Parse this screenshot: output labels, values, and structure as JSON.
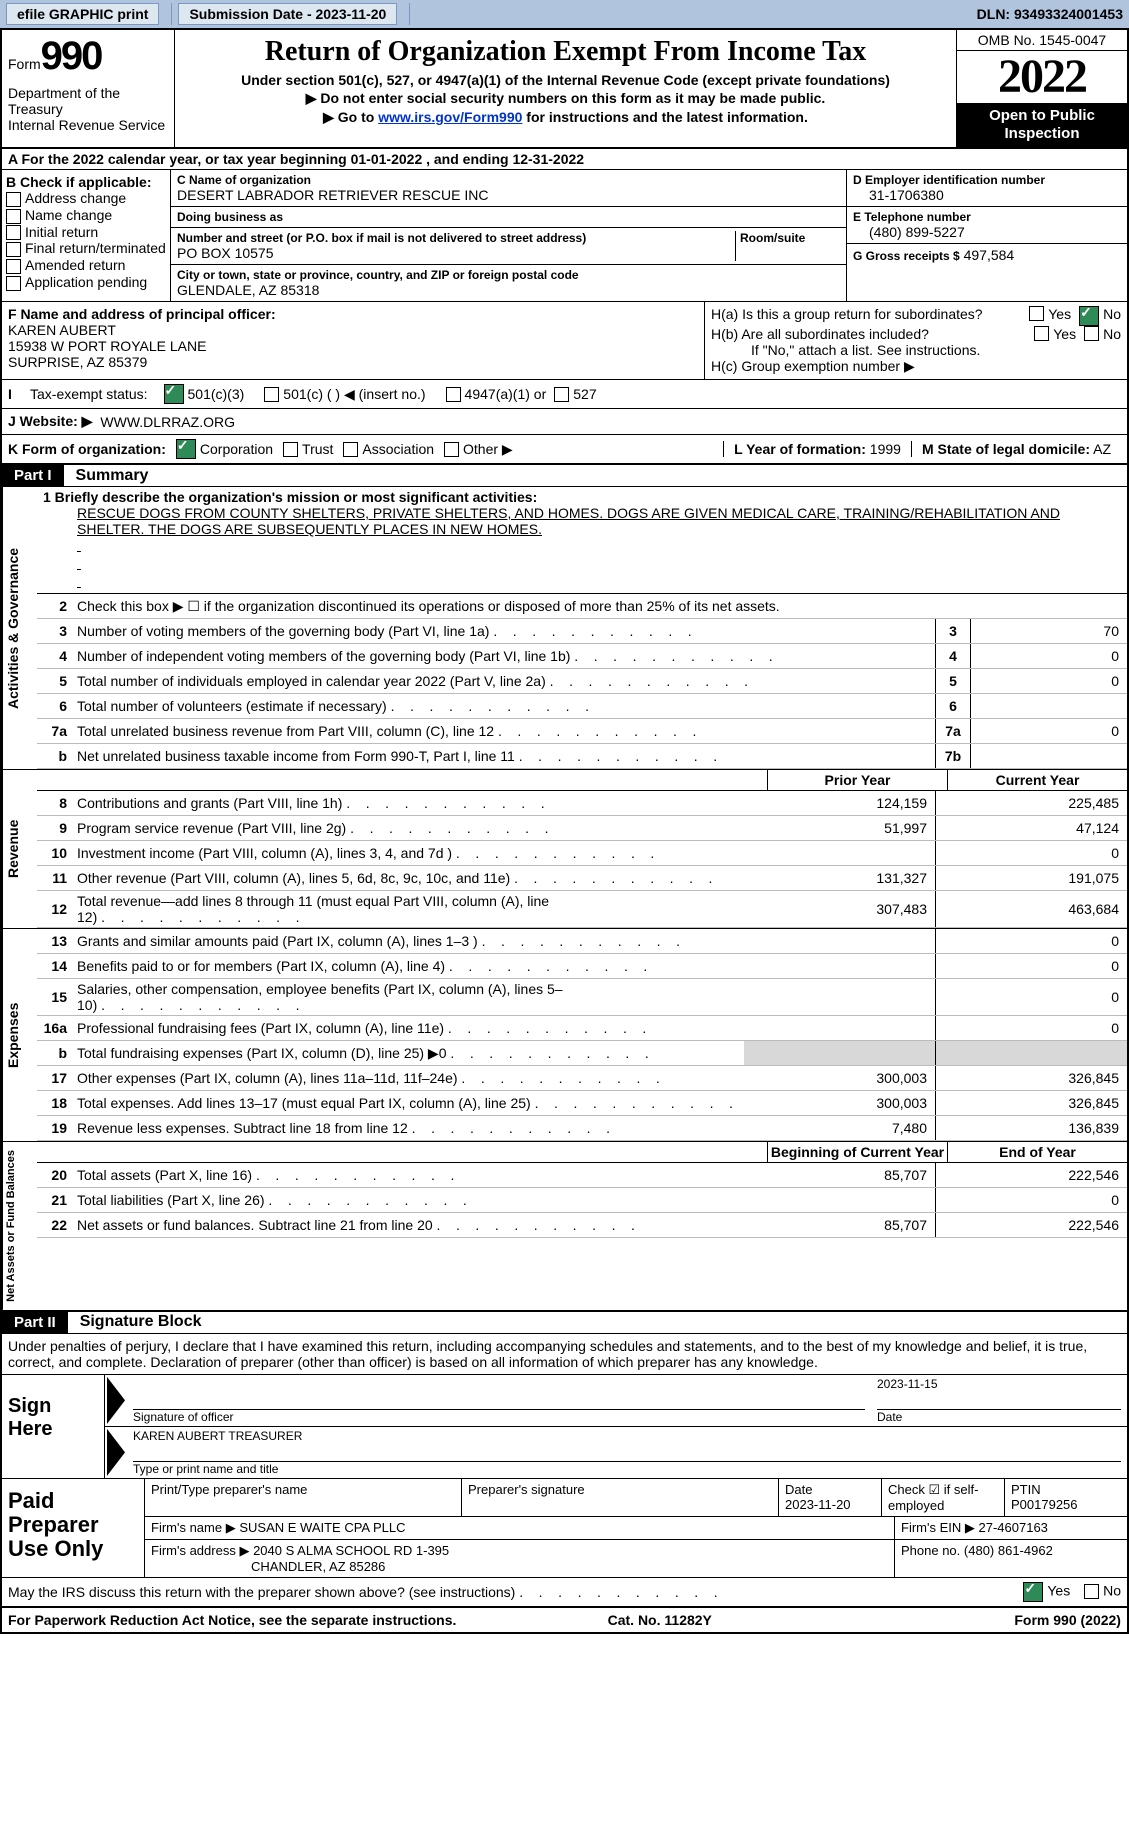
{
  "topbar": {
    "efile_label": "efile GRAPHIC print",
    "submission_label": "Submission Date - 2023-11-20",
    "dln_label": "DLN: 93493324001453"
  },
  "header": {
    "form_word": "Form",
    "form_num": "990",
    "dept": "Department of the Treasury",
    "irs": "Internal Revenue Service",
    "title": "Return of Organization Exempt From Income Tax",
    "sub1": "Under section 501(c), 527, or 4947(a)(1) of the Internal Revenue Code (except private foundations)",
    "sub2": "▶ Do not enter social security numbers on this form as it may be made public.",
    "sub3_pre": "▶ Go to ",
    "sub3_link": "www.irs.gov/Form990",
    "sub3_post": " for instructions and the latest information.",
    "omb": "OMB No. 1545-0047",
    "year": "2022",
    "inspect": "Open to Public Inspection"
  },
  "rowA": "A For the 2022 calendar year, or tax year beginning 01-01-2022    , and ending 12-31-2022",
  "boxB": {
    "label": "B Check if applicable:",
    "opts": [
      "Address change",
      "Name change",
      "Initial return",
      "Final return/terminated",
      "Amended return",
      "Application pending"
    ]
  },
  "boxC": {
    "label": "C Name of organization",
    "name": "DESERT LABRADOR RETRIEVER RESCUE INC",
    "dba_label": "Doing business as",
    "dba": "",
    "addr_label": "Number and street (or P.O. box if mail is not delivered to street address)",
    "room_label": "Room/suite",
    "addr": "PO BOX 10575",
    "city_label": "City or town, state or province, country, and ZIP or foreign postal code",
    "city": "GLENDALE, AZ  85318"
  },
  "boxD": {
    "label": "D Employer identification number",
    "value": "31-1706380",
    "phone_label": "E Telephone number",
    "phone": "(480) 899-5227",
    "gross_label": "G Gross receipts $",
    "gross": "497,584"
  },
  "boxF": {
    "label": "F  Name and address of principal officer:",
    "name": "KAREN AUBERT",
    "addr": "15938 W PORT ROYALE LANE",
    "city": "SURPRISE, AZ  85379"
  },
  "boxH": {
    "ha_label": "H(a)  Is this a group return for subordinates?",
    "hb_label": "H(b)  Are all subordinates included?",
    "hb_note": "If \"No,\" attach a list. See instructions.",
    "hc_label": "H(c)  Group exemption number ▶",
    "yes": "Yes",
    "no": "No"
  },
  "rowI": {
    "label": "Tax-exempt status:",
    "opts": [
      "501(c)(3)",
      "501(c) (  ) ◀ (insert no.)",
      "4947(a)(1) or",
      "527"
    ]
  },
  "rowJ": {
    "label": "J   Website: ▶",
    "value": "WWW.DLRRAZ.ORG"
  },
  "rowK": {
    "label": "K Form of organization:",
    "opts": [
      "Corporation",
      "Trust",
      "Association",
      "Other ▶"
    ],
    "L_label": "L Year of formation:",
    "L_val": "1999",
    "M_label": "M State of legal domicile:",
    "M_val": "AZ"
  },
  "part1": {
    "tag": "Part I",
    "title": "Summary"
  },
  "q1": {
    "label": "1   Briefly describe the organization's mission or most significant activities:",
    "text": "RESCUE DOGS FROM COUNTY SHELTERS, PRIVATE SHELTERS, AND HOMES. DOGS ARE GIVEN MEDICAL CARE, TRAINING/REHABILITATION AND SHELTER. THE DOGS ARE SUBSEQUENTLY PLACES IN NEW HOMES."
  },
  "q2": "Check this box ▶ ☐  if the organization discontinued its operations or disposed of more than 25% of its net assets.",
  "lines_gov": [
    {
      "n": "3",
      "t": "Number of voting members of the governing body (Part VI, line 1a)",
      "box": "3",
      "v": "70"
    },
    {
      "n": "4",
      "t": "Number of independent voting members of the governing body (Part VI, line 1b)",
      "box": "4",
      "v": "0"
    },
    {
      "n": "5",
      "t": "Total number of individuals employed in calendar year 2022 (Part V, line 2a)",
      "box": "5",
      "v": "0"
    },
    {
      "n": "6",
      "t": "Total number of volunteers (estimate if necessary)",
      "box": "6",
      "v": ""
    },
    {
      "n": "7a",
      "t": "Total unrelated business revenue from Part VIII, column (C), line 12",
      "box": "7a",
      "v": "0"
    },
    {
      "n": "b",
      "t": "Net unrelated business taxable income from Form 990-T, Part I, line 11",
      "box": "7b",
      "v": ""
    }
  ],
  "col_headers": {
    "prior": "Prior Year",
    "current": "Current Year"
  },
  "lines_rev": [
    {
      "n": "8",
      "t": "Contributions and grants (Part VIII, line 1h)",
      "p": "124,159",
      "c": "225,485"
    },
    {
      "n": "9",
      "t": "Program service revenue (Part VIII, line 2g)",
      "p": "51,997",
      "c": "47,124"
    },
    {
      "n": "10",
      "t": "Investment income (Part VIII, column (A), lines 3, 4, and 7d )",
      "p": "",
      "c": "0"
    },
    {
      "n": "11",
      "t": "Other revenue (Part VIII, column (A), lines 5, 6d, 8c, 9c, 10c, and 11e)",
      "p": "131,327",
      "c": "191,075"
    },
    {
      "n": "12",
      "t": "Total revenue—add lines 8 through 11 (must equal Part VIII, column (A), line 12)",
      "p": "307,483",
      "c": "463,684"
    }
  ],
  "lines_exp": [
    {
      "n": "13",
      "t": "Grants and similar amounts paid (Part IX, column (A), lines 1–3 )",
      "p": "",
      "c": "0"
    },
    {
      "n": "14",
      "t": "Benefits paid to or for members (Part IX, column (A), line 4)",
      "p": "",
      "c": "0"
    },
    {
      "n": "15",
      "t": "Salaries, other compensation, employee benefits (Part IX, column (A), lines 5–10)",
      "p": "",
      "c": "0"
    },
    {
      "n": "16a",
      "t": "Professional fundraising fees (Part IX, column (A), line 11e)",
      "p": "",
      "c": "0"
    },
    {
      "n": "b",
      "t": "Total fundraising expenses (Part IX, column (D), line 25) ▶0",
      "p": "SHADE",
      "c": "SHADE"
    },
    {
      "n": "17",
      "t": "Other expenses (Part IX, column (A), lines 11a–11d, 11f–24e)",
      "p": "300,003",
      "c": "326,845"
    },
    {
      "n": "18",
      "t": "Total expenses. Add lines 13–17 (must equal Part IX, column (A), line 25)",
      "p": "300,003",
      "c": "326,845"
    },
    {
      "n": "19",
      "t": "Revenue less expenses. Subtract line 18 from line 12",
      "p": "7,480",
      "c": "136,839"
    }
  ],
  "col_headers2": {
    "prior": "Beginning of Current Year",
    "current": "End of Year"
  },
  "lines_net": [
    {
      "n": "20",
      "t": "Total assets (Part X, line 16)",
      "p": "85,707",
      "c": "222,546"
    },
    {
      "n": "21",
      "t": "Total liabilities (Part X, line 26)",
      "p": "",
      "c": "0"
    },
    {
      "n": "22",
      "t": "Net assets or fund balances. Subtract line 21 from line 20",
      "p": "85,707",
      "c": "222,546"
    }
  ],
  "vlabels": {
    "gov": "Activities & Governance",
    "rev": "Revenue",
    "exp": "Expenses",
    "net": "Net Assets or Fund Balances"
  },
  "part2": {
    "tag": "Part II",
    "title": "Signature Block"
  },
  "sig_decl": "Under penalties of perjury, I declare that I have examined this return, including accompanying schedules and statements, and to the best of my knowledge and belief, it is true, correct, and complete. Declaration of preparer (other than officer) is based on all information of which preparer has any knowledge.",
  "sign_here": "Sign Here",
  "sig_officer_label": "Signature of officer",
  "sig_date": "2023-11-15",
  "sig_date_label": "Date",
  "sig_name": "KAREN AUBERT TREASURER",
  "sig_name_label": "Type or print name and title",
  "preparer": {
    "label": "Paid Preparer Use Only",
    "headers": [
      "Print/Type preparer's name",
      "Preparer's signature",
      "Date",
      "Check ☑ if self-employed",
      "PTIN"
    ],
    "date": "2023-11-20",
    "ptin": "P00179256",
    "firm_label": "Firm's name    ▶",
    "firm": "SUSAN E WAITE CPA PLLC",
    "ein_label": "Firm's EIN ▶",
    "ein": "27-4607163",
    "addr_label": "Firm's address ▶",
    "addr": "2040 S ALMA SCHOOL RD 1-395",
    "city": "CHANDLER, AZ  85286",
    "phone_label": "Phone no.",
    "phone": "(480) 861-4962"
  },
  "discuss": "May the IRS discuss this return with the preparer shown above? (see instructions)",
  "footer": {
    "left": "For Paperwork Reduction Act Notice, see the separate instructions.",
    "mid": "Cat. No. 11282Y",
    "right": "Form 990 (2022)"
  }
}
